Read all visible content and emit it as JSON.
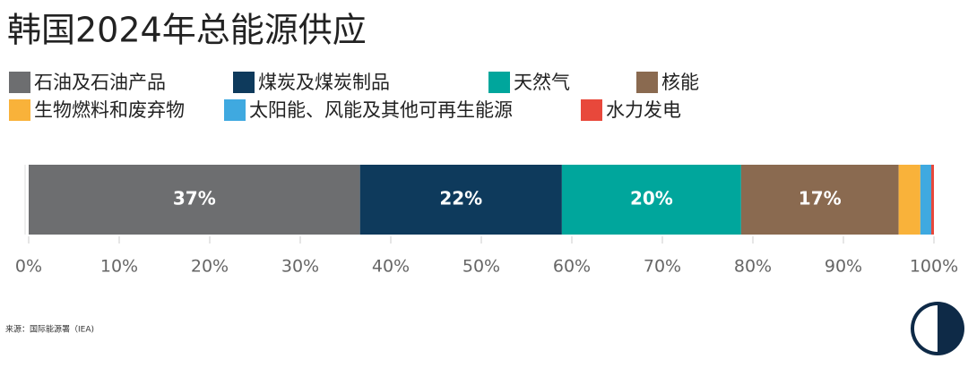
{
  "chart_data": {
    "type": "stacked-bar-horizontal",
    "title": "韩国2024年总能源供应",
    "categories": [
      null
    ],
    "series": [
      {
        "name": "石油及石油产品",
        "color": "#6d6e70",
        "values": [
          36.6
        ],
        "value_labels": [
          "37%"
        ]
      },
      {
        "name": "煤炭及煤炭制品",
        "color": "#0e3a5c",
        "values": [
          22.3
        ],
        "value_labels": [
          "22%"
        ]
      },
      {
        "name": "天然气",
        "color": "#00a69c",
        "values": [
          19.8
        ],
        "value_labels": [
          "20%"
        ]
      },
      {
        "name": "核能",
        "color": "#8a6a50",
        "values": [
          17.4
        ],
        "value_labels": [
          "17%"
        ]
      },
      {
        "name": "生物燃料和废弃物",
        "color": "#f9b23a",
        "values": [
          2.4
        ]
      },
      {
        "name": "太阳能、风能及其他可再生能源",
        "color": "#3fa9e0",
        "values": [
          1.2
        ]
      },
      {
        "name": "水力发电",
        "color": "#e8483b",
        "values": [
          0.3
        ]
      }
    ],
    "xlim": [
      0,
      100
    ],
    "xticks": [
      {
        "value": 0,
        "label": "0%"
      },
      {
        "value": 10,
        "label": "10%"
      },
      {
        "value": 20,
        "label": "20%"
      },
      {
        "value": 30,
        "label": "30%"
      },
      {
        "value": 40,
        "label": "40%"
      },
      {
        "value": 50,
        "label": "50%"
      },
      {
        "value": 60,
        "label": "60%"
      },
      {
        "value": 70,
        "label": "70%"
      },
      {
        "value": 80,
        "label": "80%"
      },
      {
        "value": 90,
        "label": "90%"
      },
      {
        "value": 100,
        "label": "100%"
      }
    ],
    "source": "来源：国际能源署（IEA)"
  }
}
